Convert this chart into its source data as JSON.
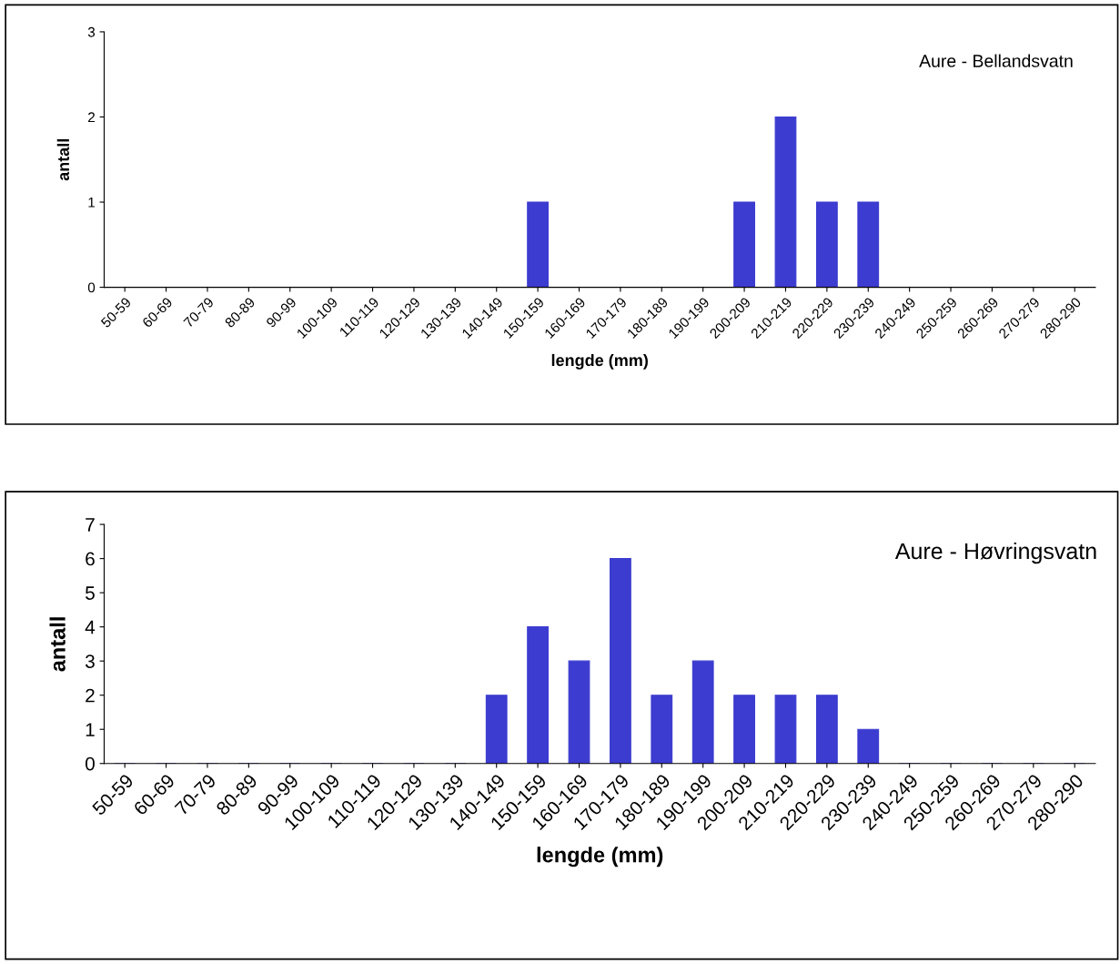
{
  "chart_data": [
    {
      "type": "bar",
      "xlabel": "lengde (mm)",
      "ylabel": "antall",
      "annotations": [
        "Aure - Bellandsvatn"
      ],
      "categories": [
        "50-59",
        "60-69",
        "70-79",
        "80-89",
        "90-99",
        "100-109",
        "110-119",
        "120-129",
        "130-139",
        "140-149",
        "150-159",
        "160-169",
        "170-179",
        "180-189",
        "190-199",
        "200-209",
        "210-219",
        "220-229",
        "230-239",
        "240-249",
        "250-259",
        "260-269",
        "270-279",
        "280-290"
      ],
      "values": [
        0,
        0,
        0,
        0,
        0,
        0,
        0,
        0,
        0,
        0,
        1,
        0,
        0,
        0,
        0,
        1,
        2,
        1,
        1,
        0,
        0,
        0,
        0,
        0
      ],
      "color": "#3c3cd0",
      "ylim": [
        0,
        3
      ],
      "yticks": [
        0,
        1,
        2,
        3
      ],
      "grid": false,
      "legend": false
    },
    {
      "type": "bar",
      "xlabel": "lengde (mm)",
      "ylabel": "antall",
      "annotations": [
        "Aure - Høvringsvatn"
      ],
      "categories": [
        "50-59",
        "60-69",
        "70-79",
        "80-89",
        "90-99",
        "100-109",
        "110-119",
        "120-129",
        "130-139",
        "140-149",
        "150-159",
        "160-169",
        "170-179",
        "180-189",
        "190-199",
        "200-209",
        "210-219",
        "220-229",
        "230-239",
        "240-249",
        "250-259",
        "260-269",
        "270-279",
        "280-290"
      ],
      "values": [
        0,
        0,
        0,
        0,
        0,
        0,
        0,
        0,
        0,
        2,
        4,
        3,
        6,
        2,
        3,
        2,
        2,
        2,
        1,
        0,
        0,
        0,
        0,
        0
      ],
      "color": "#3c3cd0",
      "ylim": [
        0,
        7
      ],
      "yticks": [
        0,
        1,
        2,
        3,
        4,
        5,
        6,
        7
      ],
      "grid": false,
      "legend": false
    }
  ]
}
